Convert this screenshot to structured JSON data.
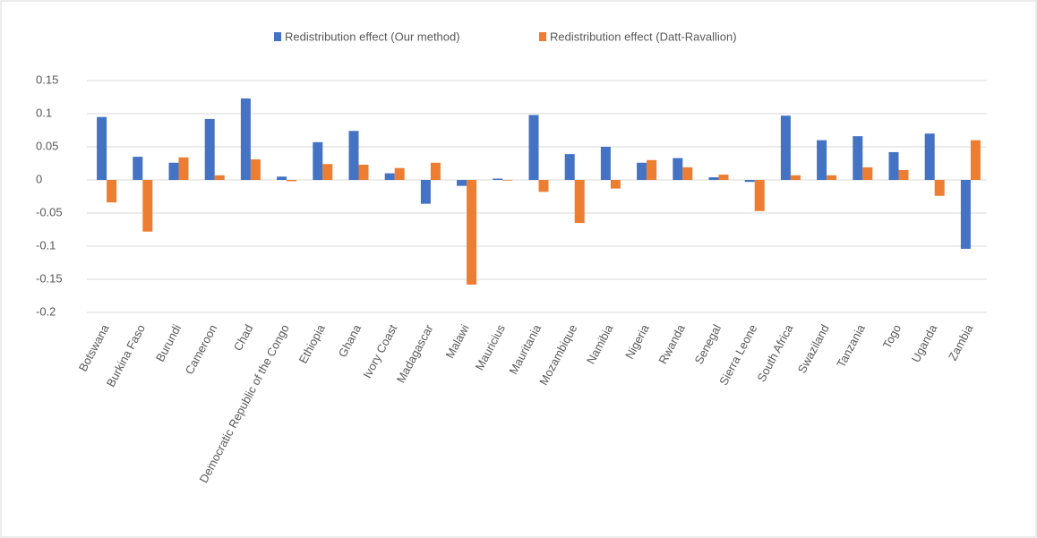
{
  "chart_data": {
    "type": "bar",
    "categories": [
      "Botswana",
      "Burkina Faso",
      "Burundi",
      "Cameroon",
      "Chad",
      "Democratic Republic of the Congo",
      "Ethiopia",
      "Ghana",
      "Ivory Coast",
      "Madagascar",
      "Malawi",
      "Mauricius",
      "Mauritania",
      "Mozambique",
      "Namibia",
      "Nigeria",
      "Rwanda",
      "Senegal",
      "Sierra Leone",
      "South Africa",
      "Swaziland",
      "Tanzania",
      "Togo",
      "Uganda",
      "Zambia"
    ],
    "series": [
      {
        "name": "Redistribution effect (Our method)",
        "color": "#4472c4",
        "values": [
          0.095,
          0.035,
          0.026,
          0.092,
          0.123,
          0.005,
          0.057,
          0.074,
          0.01,
          -0.036,
          -0.009,
          0.002,
          0.098,
          0.039,
          0.05,
          0.026,
          0.033,
          0.004,
          -0.003,
          0.097,
          0.06,
          0.066,
          0.042,
          0.07,
          -0.104
        ]
      },
      {
        "name": "Redistribution effect (Datt-Ravallion)",
        "color": "#ed7d31",
        "values": [
          -0.034,
          -0.078,
          0.034,
          0.007,
          0.031,
          -0.002,
          0.024,
          0.023,
          0.018,
          0.026,
          -0.158,
          -0.001,
          -0.018,
          -0.065,
          -0.013,
          0.03,
          0.019,
          0.008,
          -0.047,
          0.007,
          0.007,
          0.019,
          0.015,
          -0.024,
          0.06
        ]
      }
    ],
    "ylim": [
      -0.2,
      0.15
    ],
    "yticks": [
      -0.2,
      -0.15,
      -0.1,
      -0.05,
      0,
      0.05,
      0.1,
      0.15
    ],
    "grid": true,
    "legend": "top"
  }
}
